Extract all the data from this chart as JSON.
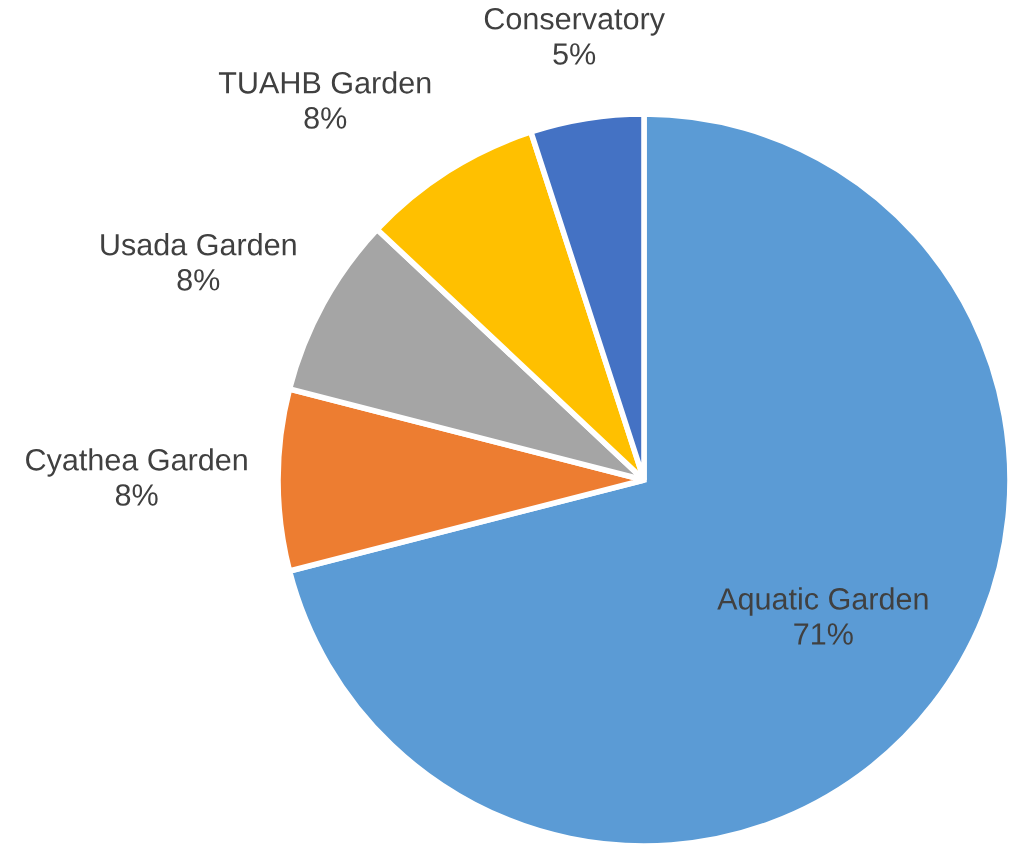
{
  "chart_data": {
    "type": "pie",
    "categories": [
      "Aquatic Garden",
      "Cyathea Garden",
      "Usada Garden",
      "TUAHB Garden",
      "Conservatory"
    ],
    "values": [
      71,
      8,
      8,
      8,
      5
    ],
    "colors": [
      "#5b9bd5",
      "#ed7d31",
      "#a5a5a5",
      "#ffc000",
      "#4472c4"
    ],
    "value_labels": [
      "71%",
      "8%",
      "8%",
      "8%",
      "5%"
    ]
  }
}
